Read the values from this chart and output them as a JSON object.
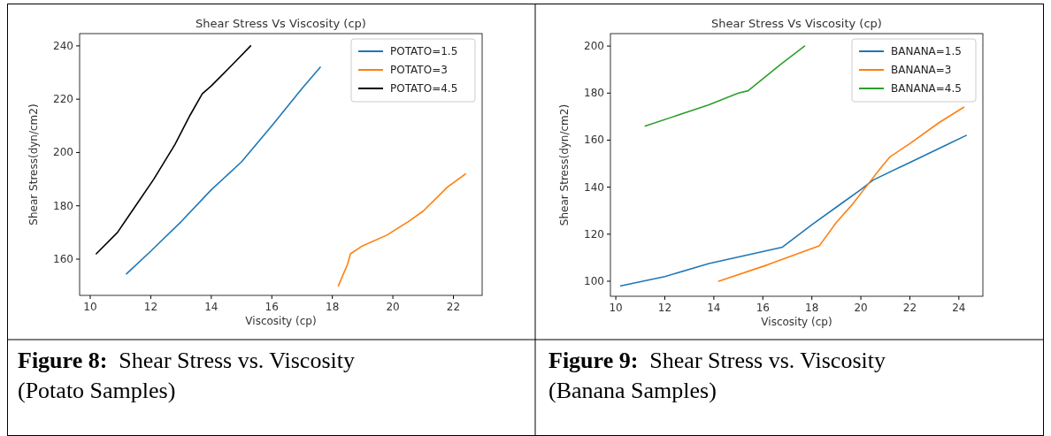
{
  "chart_data": [
    {
      "type": "line",
      "title": "Shear Stress Vs Viscosity (cp)",
      "xlabel": "Viscosity (cp)",
      "ylabel": "Shear Stress(dyn/cm2)",
      "xlim": [
        9.65,
        22.95
      ],
      "xticks": [
        10,
        12,
        14,
        16,
        18,
        20,
        22
      ],
      "ylim": [
        146.4,
        244.6
      ],
      "yticks": [
        160,
        180,
        200,
        220,
        240
      ],
      "legend": "top right",
      "marker": "none",
      "annotations": [
        "Figure 8:  Shear Stress vs. Viscosity (Potato Samples)"
      ],
      "series": [
        {
          "name": "POTATO=1.5",
          "color": "#1f77b4",
          "x": [
            11.2,
            12,
            13,
            14,
            15,
            16,
            17,
            17.6
          ],
          "values": [
            154.5,
            163,
            174,
            186,
            196.5,
            210,
            224,
            232
          ]
        },
        {
          "name": "POTATO=3",
          "color": "#ff7f0e",
          "x": [
            18.2,
            18.5,
            18.6,
            19,
            19.8,
            20.5,
            21,
            21.8,
            22.4
          ],
          "values": [
            150,
            158,
            162,
            165,
            169,
            174,
            178,
            187,
            192
          ]
        },
        {
          "name": "POTATO=4.5",
          "color": "#000000",
          "x": [
            10.2,
            10.9,
            11.5,
            12.1,
            12.8,
            13.3,
            13.7,
            14,
            14.7,
            15.3
          ],
          "values": [
            162,
            170,
            180,
            190,
            203,
            214,
            222,
            225,
            233,
            240
          ]
        }
      ]
    },
    {
      "type": "line",
      "title": "Shear Stress Vs Viscosity (cp)",
      "xlabel": "Viscosity (cp)",
      "ylabel": "Shear Stress(dyn/cm2)",
      "xlim": [
        9.78,
        24.98
      ],
      "xticks": [
        10,
        12,
        14,
        16,
        18,
        20,
        22,
        24
      ],
      "ylim": [
        93.6,
        205.3
      ],
      "yticks": [
        100,
        120,
        140,
        160,
        180,
        200
      ],
      "legend": "top right",
      "marker": "none",
      "annotations": [
        "Figure 9:  Shear Stress vs. Viscosity (Banana Samples)"
      ],
      "series": [
        {
          "name": "BANANA=1.5",
          "color": "#1f77b4",
          "x": [
            10.2,
            12,
            13.8,
            16.8,
            18,
            19.2,
            20,
            20.5,
            21.7,
            23.5,
            24.3
          ],
          "values": [
            98,
            102,
            107.5,
            114.5,
            124,
            133,
            139,
            143,
            149,
            158,
            162
          ]
        },
        {
          "name": "BANANA=3",
          "color": "#ff7f0e",
          "x": [
            14.2,
            16.2,
            18.3,
            19,
            19.6,
            20.2,
            20.8,
            21.2,
            22,
            23.2,
            24.2
          ],
          "values": [
            100,
            107,
            115,
            125,
            132,
            140,
            148,
            153,
            158.5,
            167.5,
            174
          ]
        },
        {
          "name": "BANANA=4.5",
          "color": "#2ca02c",
          "x": [
            11.2,
            13.8,
            15,
            15.4,
            16.7,
            17.7
          ],
          "values": [
            166,
            175,
            180,
            181,
            192,
            200
          ]
        }
      ]
    }
  ]
}
